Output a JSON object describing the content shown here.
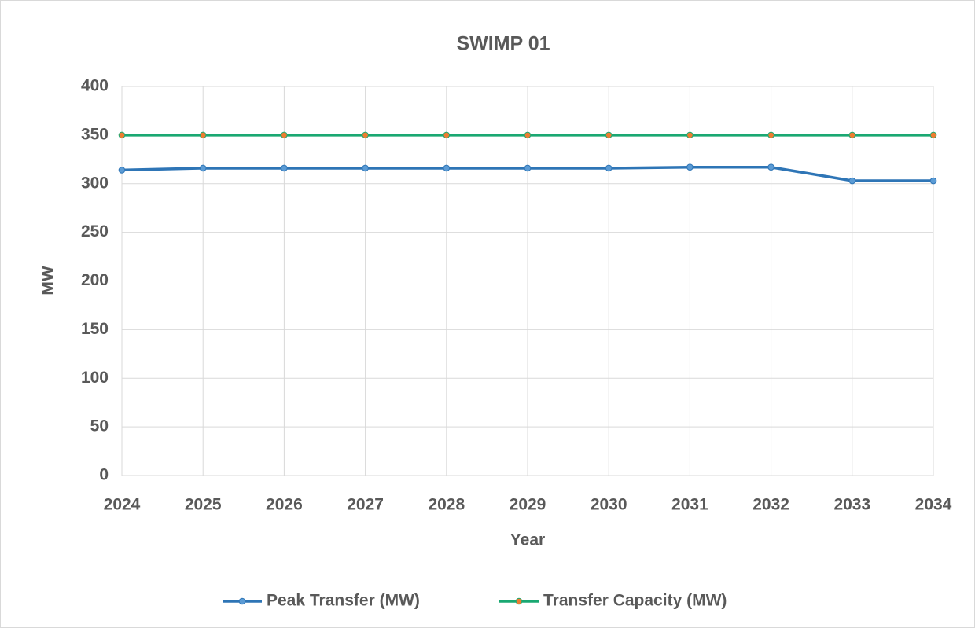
{
  "chart_data": {
    "type": "line",
    "title": "SWIMP 01",
    "x_label": "Year",
    "y_label": "MW",
    "categories": [
      "2024",
      "2025",
      "2026",
      "2027",
      "2028",
      "2029",
      "2030",
      "2031",
      "2032",
      "2033",
      "2034"
    ],
    "series": [
      {
        "name": "Peak Transfer (MW)",
        "color": "#2e75b6",
        "marker_color": "#5b9bd5",
        "values": [
          314,
          316,
          316,
          316,
          316,
          316,
          316,
          317,
          317,
          303,
          303
        ]
      },
      {
        "name": "Transfer Capacity (MW)",
        "color": "#1aa872",
        "marker_color": "#ed7d31",
        "values": [
          350,
          350,
          350,
          350,
          350,
          350,
          350,
          350,
          350,
          350,
          350
        ]
      }
    ],
    "ylim": [
      0,
      400
    ],
    "yticks": [
      0,
      50,
      100,
      150,
      200,
      250,
      300,
      350,
      400
    ],
    "grid": true,
    "legend": "bottom"
  }
}
